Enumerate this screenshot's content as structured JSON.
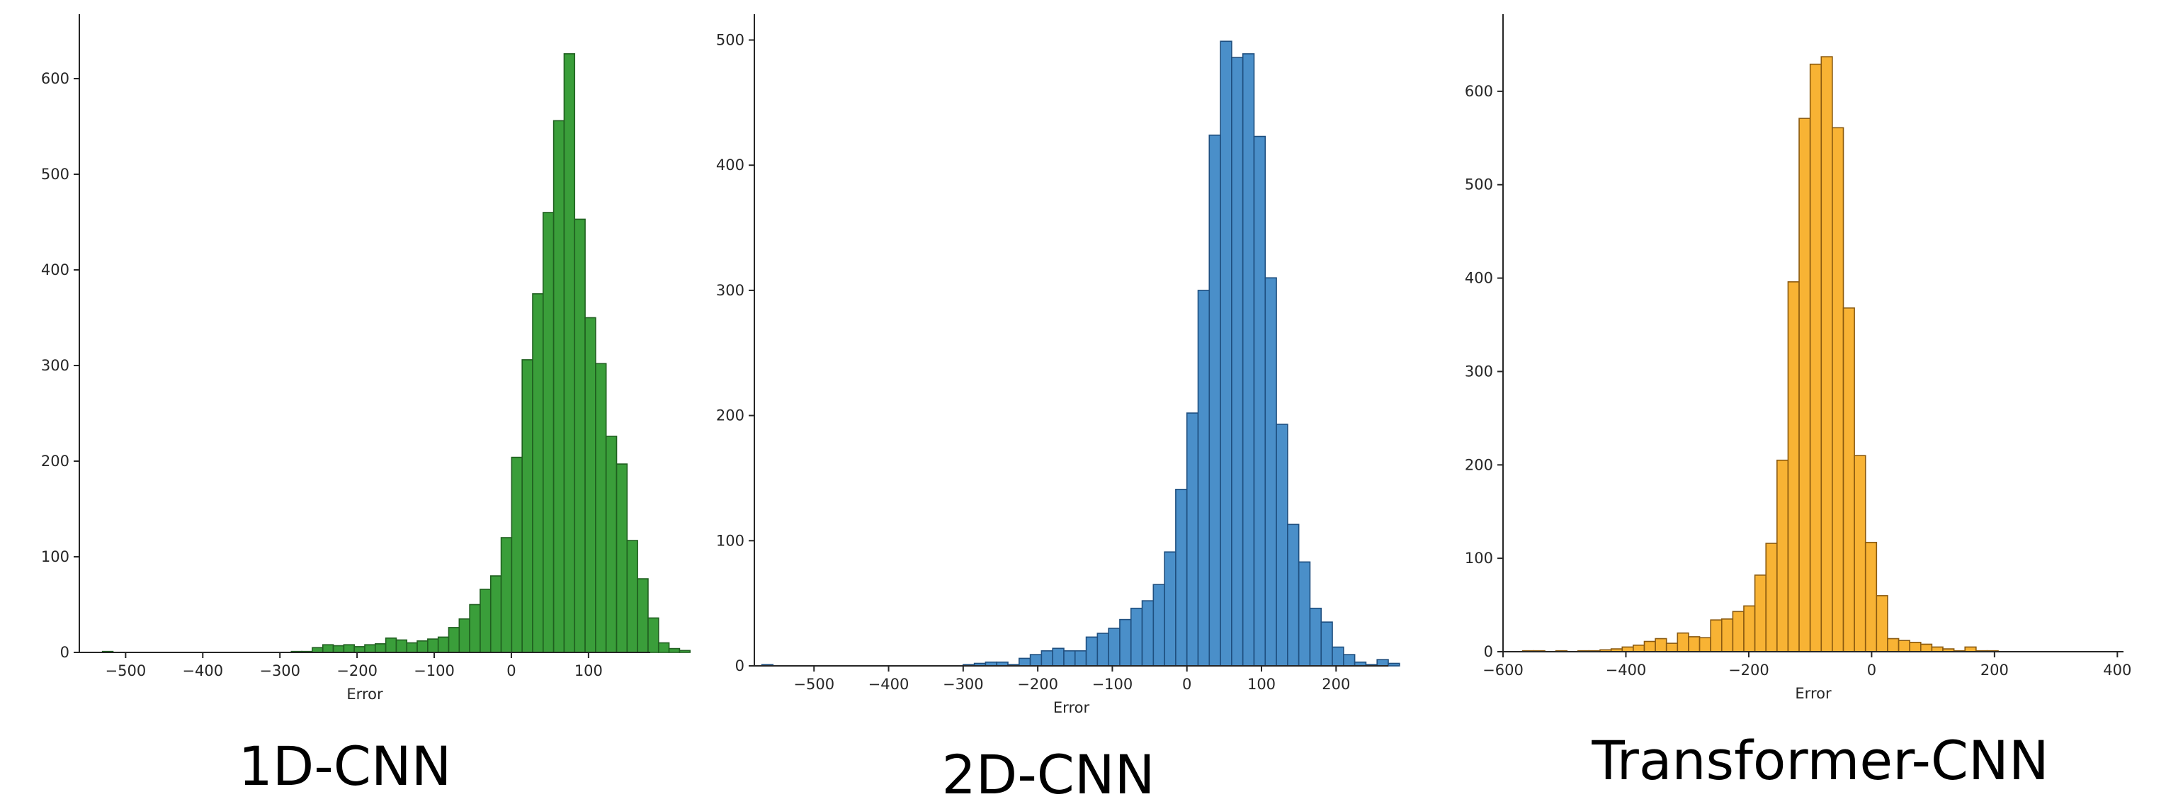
{
  "chart_data": [
    {
      "type": "bar",
      "title": "1D-CNN",
      "xlabel": "Error",
      "ylabel": "",
      "xlim": [
        -560,
        180
      ],
      "ylim": [
        0,
        660
      ],
      "xticks": [
        -500,
        -400,
        -300,
        -200,
        -100,
        0,
        100
      ],
      "yticks": [
        0,
        100,
        200,
        300,
        400,
        500,
        600
      ],
      "xtick_labels": [
        "−500",
        "−400",
        "−300",
        "−200",
        "−100",
        "0",
        "100"
      ],
      "ytick_labels": [
        "0",
        "100",
        "200",
        "300",
        "400",
        "500",
        "600"
      ],
      "bin_width": 13.6,
      "bin_start": -530,
      "counts": [
        1,
        0,
        0,
        0,
        0,
        0,
        0,
        0,
        0,
        0,
        0,
        0,
        0,
        0,
        0,
        0,
        0,
        0,
        1,
        1,
        5,
        8,
        7,
        8,
        6,
        8,
        9,
        15,
        13,
        10,
        12,
        14,
        16,
        26,
        35,
        50,
        66,
        80,
        120,
        204,
        306,
        375,
        460,
        556,
        626,
        453,
        350,
        302,
        226,
        197,
        117,
        77,
        36,
        10,
        4,
        2
      ],
      "color": "#3a9e3a",
      "edge_color": "#1f5f1f"
    },
    {
      "type": "bar",
      "title": "2D-CNN",
      "xlabel": "Error",
      "ylabel": "",
      "xlim": [
        -580,
        270
      ],
      "ylim": [
        0,
        515
      ],
      "xticks": [
        -500,
        -400,
        -300,
        -200,
        -100,
        0,
        100,
        200
      ],
      "yticks": [
        0,
        100,
        200,
        300,
        400,
        500
      ],
      "xtick_labels": [
        "−500",
        "−400",
        "−300",
        "−200",
        "−100",
        "0",
        "100",
        "200"
      ],
      "ytick_labels": [
        "0",
        "100",
        "200",
        "300",
        "400",
        "500"
      ],
      "bin_width": 15,
      "bin_start": -570,
      "counts": [
        1,
        0,
        0,
        0,
        0,
        0,
        0,
        0,
        0,
        0,
        0,
        0,
        0,
        0,
        0,
        0,
        0,
        0,
        1,
        2,
        3,
        3,
        1,
        6,
        9,
        12,
        14,
        12,
        12,
        23,
        26,
        30,
        37,
        46,
        52,
        65,
        91,
        141,
        202,
        300,
        424,
        499,
        486,
        489,
        423,
        310,
        193,
        113,
        83,
        46,
        35,
        15,
        9,
        3,
        1,
        5,
        2
      ],
      "color": "#4a8fc9",
      "edge_color": "#1f4f7f"
    },
    {
      "type": "bar",
      "title": "Transformer-CNN",
      "xlabel": "Error",
      "ylabel": "",
      "xlim": [
        -600,
        410
      ],
      "ylim": [
        0,
        675
      ],
      "xticks": [
        -600,
        -400,
        -200,
        0,
        200,
        400
      ],
      "yticks": [
        0,
        100,
        200,
        300,
        400,
        500,
        600
      ],
      "xtick_labels": [
        "−600",
        "−400",
        "−200",
        "0",
        "200",
        "400"
      ],
      "ytick_labels": [
        "0",
        "100",
        "200",
        "300",
        "400",
        "500",
        "600"
      ],
      "bin_width": 18,
      "bin_start": -568,
      "counts": [
        1,
        1,
        0,
        1,
        0,
        1,
        1,
        2,
        3,
        5,
        7,
        11,
        14,
        9,
        20,
        16,
        15,
        34,
        35,
        43,
        49,
        82,
        116,
        205,
        396,
        571,
        629,
        637,
        561,
        368,
        210,
        117,
        60,
        14,
        12,
        10,
        8,
        5,
        3,
        1,
        5,
        1,
        1
      ],
      "color": "#f8b334",
      "edge_color": "#8a5a10"
    }
  ]
}
